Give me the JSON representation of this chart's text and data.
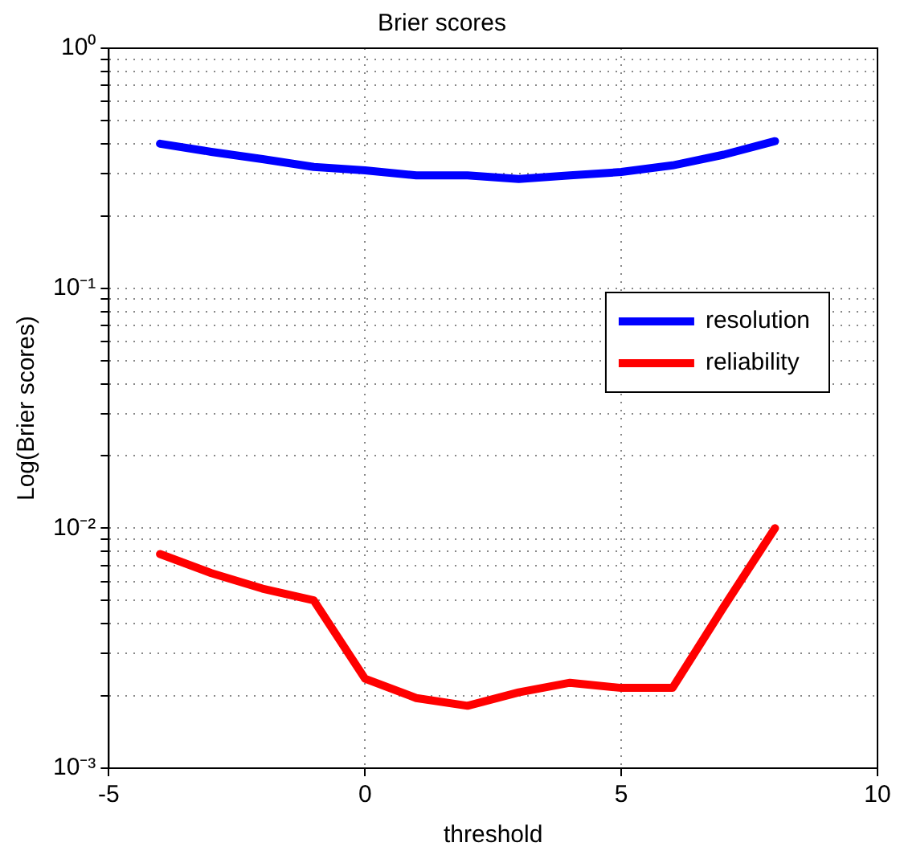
{
  "chart_data": {
    "type": "line",
    "title": "Brier scores",
    "xlabel": "threshold",
    "ylabel": "Log(Brier scores)",
    "x": [
      -4,
      -3,
      -2,
      -1,
      0,
      1,
      2,
      3,
      4,
      5,
      6,
      7,
      8
    ],
    "series": [
      {
        "name": "resolution",
        "color": "#0000ff",
        "values": [
          0.4,
          0.37,
          0.345,
          0.32,
          0.31,
          0.295,
          0.295,
          0.285,
          0.295,
          0.305,
          0.325,
          0.36,
          0.41
        ]
      },
      {
        "name": "reliability",
        "color": "#ff0000",
        "values": [
          0.0078,
          0.0065,
          0.0056,
          0.005,
          0.00236,
          0.00196,
          0.00182,
          0.00207,
          0.00227,
          0.00216,
          0.00216,
          0.0047,
          0.01
        ]
      }
    ],
    "xlim": [
      -5,
      10
    ],
    "xticks": [
      -5,
      0,
      5,
      10
    ],
    "ylim": [
      0.001,
      1
    ],
    "yticks": [
      {
        "value": 0.001,
        "label": "10⁻³"
      },
      {
        "value": 0.002,
        "label": null
      },
      {
        "value": 0.003,
        "label": null
      },
      {
        "value": 0.004,
        "label": null
      },
      {
        "value": 0.005,
        "label": null
      },
      {
        "value": 0.006,
        "label": null
      },
      {
        "value": 0.007,
        "label": null
      },
      {
        "value": 0.008,
        "label": null
      },
      {
        "value": 0.009,
        "label": null
      },
      {
        "value": 0.01,
        "label": "10⁻²"
      },
      {
        "value": 0.02,
        "label": null
      },
      {
        "value": 0.03,
        "label": null
      },
      {
        "value": 0.04,
        "label": null
      },
      {
        "value": 0.05,
        "label": null
      },
      {
        "value": 0.06,
        "label": null
      },
      {
        "value": 0.07,
        "label": null
      },
      {
        "value": 0.08,
        "label": null
      },
      {
        "value": 0.09,
        "label": null
      },
      {
        "value": 0.1,
        "label": "10⁻¹"
      },
      {
        "value": 0.2,
        "label": null
      },
      {
        "value": 0.3,
        "label": null
      },
      {
        "value": 0.4,
        "label": null
      },
      {
        "value": 0.5,
        "label": null
      },
      {
        "value": 0.6,
        "label": null
      },
      {
        "value": 0.7,
        "label": null
      },
      {
        "value": 0.8,
        "label": null
      },
      {
        "value": 0.9,
        "label": null
      },
      {
        "value": 1,
        "label": "10⁰"
      }
    ],
    "log": "y",
    "grid": true,
    "legend": "right",
    "marker": "none",
    "line_style": "solid"
  }
}
